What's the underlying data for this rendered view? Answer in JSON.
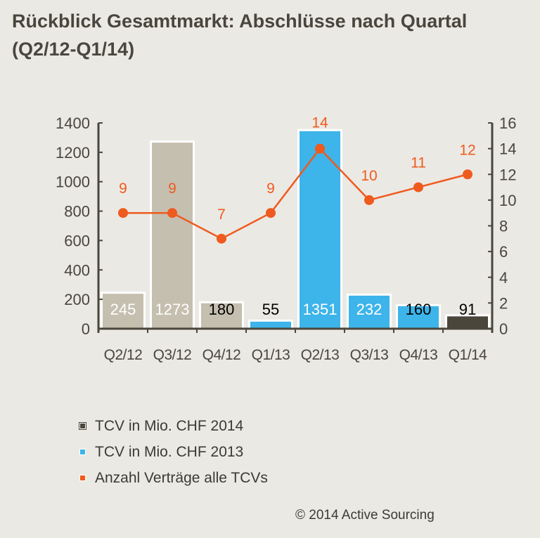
{
  "title": "Rückblick Gesamtmarkt: Abschlüsse nach Quartal (Q2/12-Q1/14)",
  "copyright": "© 2014 Active Sourcing",
  "colors": {
    "taupe": "#c5bfb0",
    "blue": "#3db4ea",
    "dark": "#4a463c",
    "orange": "#ef5a1e",
    "axis": "#4a463d"
  },
  "legend": [
    {
      "label": "TCV in Mio. CHF 2014",
      "color": "#4a463c"
    },
    {
      "label": "TCV in Mio. CHF 2013",
      "color": "#3db4ea"
    },
    {
      "label": "Anzahl Verträge alle TCVs",
      "color": "#ef5a1e"
    }
  ],
  "chart_data": {
    "type": "bar+line",
    "title": "Rückblick Gesamtmarkt: Abschlüsse nach Quartal (Q2/12-Q1/14)",
    "categories": [
      "Q2/12",
      "Q3/12",
      "Q4/12",
      "Q1/13",
      "Q2/13",
      "Q3/13",
      "Q4/13",
      "Q1/14"
    ],
    "bars": {
      "name": "TCV in Mio. CHF",
      "values": [
        245,
        1273,
        180,
        55,
        1351,
        232,
        160,
        91
      ],
      "colors": [
        "#c5bfb0",
        "#c5bfb0",
        "#c5bfb0",
        "#3db4ea",
        "#3db4ea",
        "#3db4ea",
        "#3db4ea",
        "#4a463c"
      ],
      "label_colors": [
        "#ffffff",
        "#ffffff",
        "#000000",
        "#000000",
        "#ffffff",
        "#ffffff",
        "#000000",
        "#000000"
      ]
    },
    "line": {
      "name": "Anzahl Verträge alle TCVs",
      "values": [
        9,
        9,
        7,
        9,
        14,
        10,
        11,
        12
      ]
    },
    "y_left": {
      "min": 0,
      "max": 1400,
      "ticks": [
        0,
        200,
        400,
        600,
        800,
        1000,
        1200,
        1400
      ]
    },
    "y_right": {
      "min": 0,
      "max": 16,
      "ticks": [
        0,
        2,
        4,
        6,
        8,
        10,
        12,
        14,
        16
      ]
    },
    "legend_position": "bottom-left",
    "grid": false
  }
}
